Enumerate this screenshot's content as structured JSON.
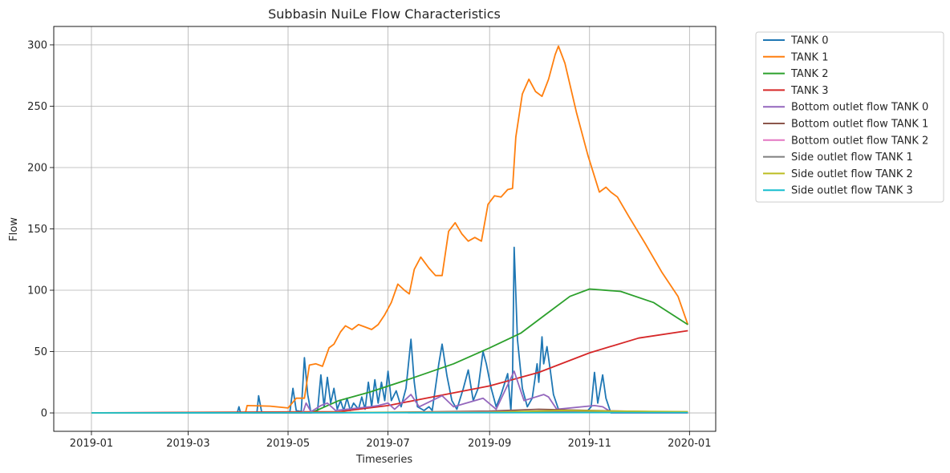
{
  "chart_data": {
    "type": "line",
    "title": "Subbasin NuiLe Flow Characteristics",
    "xlabel": "Timeseries",
    "ylabel": "Flow",
    "xlim": [
      "2018-12-09",
      "2020-01-17"
    ],
    "ylim": [
      -15,
      315
    ],
    "x_ticks": [
      "2019-01",
      "2019-03",
      "2019-05",
      "2019-07",
      "2019-09",
      "2019-11",
      "2020-01"
    ],
    "y_ticks": [
      0,
      50,
      100,
      150,
      200,
      250,
      300
    ],
    "grid": true,
    "legend_position": "outside-right",
    "series": [
      {
        "name": "TANK 0",
        "color": "#1f77b4",
        "points": [
          [
            "2019-01-01",
            0
          ],
          [
            "2019-03-31",
            0
          ],
          [
            "2019-04-01",
            5
          ],
          [
            "2019-04-02",
            0
          ],
          [
            "2019-04-12",
            0
          ],
          [
            "2019-04-13",
            14
          ],
          [
            "2019-04-15",
            0
          ],
          [
            "2019-05-02",
            0
          ],
          [
            "2019-05-04",
            20
          ],
          [
            "2019-05-06",
            2
          ],
          [
            "2019-05-09",
            1
          ],
          [
            "2019-05-11",
            45
          ],
          [
            "2019-05-13",
            15
          ],
          [
            "2019-05-15",
            0
          ],
          [
            "2019-05-19",
            2
          ],
          [
            "2019-05-21",
            31
          ],
          [
            "2019-05-23",
            5
          ],
          [
            "2019-05-25",
            29
          ],
          [
            "2019-05-27",
            8
          ],
          [
            "2019-05-29",
            20
          ],
          [
            "2019-05-31",
            3
          ],
          [
            "2019-06-02",
            10
          ],
          [
            "2019-06-04",
            2
          ],
          [
            "2019-06-06",
            12
          ],
          [
            "2019-06-08",
            2
          ],
          [
            "2019-06-10",
            8
          ],
          [
            "2019-06-13",
            3
          ],
          [
            "2019-06-15",
            13
          ],
          [
            "2019-06-17",
            3
          ],
          [
            "2019-06-19",
            25
          ],
          [
            "2019-06-21",
            5
          ],
          [
            "2019-06-23",
            27
          ],
          [
            "2019-06-25",
            8
          ],
          [
            "2019-06-27",
            25
          ],
          [
            "2019-06-29",
            10
          ],
          [
            "2019-07-01",
            34
          ],
          [
            "2019-07-03",
            10
          ],
          [
            "2019-07-06",
            18
          ],
          [
            "2019-07-09",
            5
          ],
          [
            "2019-07-12",
            20
          ],
          [
            "2019-07-15",
            60
          ],
          [
            "2019-07-17",
            25
          ],
          [
            "2019-07-19",
            5
          ],
          [
            "2019-07-23",
            2
          ],
          [
            "2019-07-26",
            5
          ],
          [
            "2019-07-28",
            2
          ],
          [
            "2019-08-01",
            40
          ],
          [
            "2019-08-03",
            56
          ],
          [
            "2019-08-06",
            30
          ],
          [
            "2019-08-09",
            10
          ],
          [
            "2019-08-12",
            3
          ],
          [
            "2019-08-16",
            20
          ],
          [
            "2019-08-19",
            35
          ],
          [
            "2019-08-22",
            10
          ],
          [
            "2019-08-25",
            20
          ],
          [
            "2019-08-28",
            50
          ],
          [
            "2019-08-30",
            40
          ],
          [
            "2019-09-02",
            20
          ],
          [
            "2019-09-05",
            5
          ],
          [
            "2019-09-08",
            15
          ],
          [
            "2019-09-12",
            32
          ],
          [
            "2019-09-14",
            2
          ],
          [
            "2019-09-15",
            30
          ],
          [
            "2019-09-16",
            135
          ],
          [
            "2019-09-18",
            60
          ],
          [
            "2019-09-21",
            20
          ],
          [
            "2019-09-24",
            5
          ],
          [
            "2019-09-27",
            12
          ],
          [
            "2019-09-30",
            40
          ],
          [
            "2019-10-01",
            25
          ],
          [
            "2019-10-03",
            62
          ],
          [
            "2019-10-04",
            40
          ],
          [
            "2019-10-06",
            54
          ],
          [
            "2019-10-08",
            35
          ],
          [
            "2019-10-10",
            15
          ],
          [
            "2019-10-13",
            3
          ],
          [
            "2019-10-18",
            1
          ],
          [
            "2019-10-25",
            1
          ],
          [
            "2019-10-31",
            2
          ],
          [
            "2019-11-02",
            5
          ],
          [
            "2019-11-04",
            33
          ],
          [
            "2019-11-06",
            8
          ],
          [
            "2019-11-09",
            31
          ],
          [
            "2019-11-11",
            12
          ],
          [
            "2019-11-14",
            0
          ],
          [
            "2019-12-31",
            0
          ]
        ]
      },
      {
        "name": "TANK 1",
        "color": "#ff7f0e",
        "points": [
          [
            "2019-01-01",
            0
          ],
          [
            "2019-04-05",
            0
          ],
          [
            "2019-04-06",
            6
          ],
          [
            "2019-04-20",
            5.5
          ],
          [
            "2019-05-01",
            4
          ],
          [
            "2019-05-06",
            12
          ],
          [
            "2019-05-11",
            12
          ],
          [
            "2019-05-14",
            39
          ],
          [
            "2019-05-18",
            40
          ],
          [
            "2019-05-22",
            38
          ],
          [
            "2019-05-26",
            53
          ],
          [
            "2019-05-29",
            56
          ],
          [
            "2019-06-02",
            66
          ],
          [
            "2019-06-05",
            71
          ],
          [
            "2019-06-09",
            68
          ],
          [
            "2019-06-13",
            72
          ],
          [
            "2019-06-17",
            70
          ],
          [
            "2019-06-21",
            68
          ],
          [
            "2019-06-25",
            72
          ],
          [
            "2019-06-29",
            80
          ],
          [
            "2019-07-03",
            90
          ],
          [
            "2019-07-07",
            105
          ],
          [
            "2019-07-11",
            100
          ],
          [
            "2019-07-14",
            97
          ],
          [
            "2019-07-17",
            117
          ],
          [
            "2019-07-21",
            127
          ],
          [
            "2019-07-26",
            118
          ],
          [
            "2019-07-30",
            112
          ],
          [
            "2019-08-03",
            112
          ],
          [
            "2019-08-07",
            148
          ],
          [
            "2019-08-11",
            155
          ],
          [
            "2019-08-15",
            146
          ],
          [
            "2019-08-19",
            140
          ],
          [
            "2019-08-23",
            143
          ],
          [
            "2019-08-27",
            140
          ],
          [
            "2019-08-31",
            170
          ],
          [
            "2019-09-04",
            177
          ],
          [
            "2019-09-08",
            176
          ],
          [
            "2019-09-12",
            182
          ],
          [
            "2019-09-15",
            183
          ],
          [
            "2019-09-17",
            225
          ],
          [
            "2019-09-21",
            260
          ],
          [
            "2019-09-25",
            272
          ],
          [
            "2019-09-29",
            262
          ],
          [
            "2019-10-03",
            258
          ],
          [
            "2019-10-07",
            272
          ],
          [
            "2019-10-11",
            292
          ],
          [
            "2019-10-13",
            299
          ],
          [
            "2019-10-17",
            285
          ],
          [
            "2019-10-24",
            245
          ],
          [
            "2019-10-31",
            210
          ],
          [
            "2019-11-07",
            180
          ],
          [
            "2019-11-11",
            184
          ],
          [
            "2019-11-14",
            180
          ],
          [
            "2019-11-18",
            176
          ],
          [
            "2019-11-25",
            160
          ],
          [
            "2019-12-05",
            138
          ],
          [
            "2019-12-15",
            115
          ],
          [
            "2019-12-25",
            95
          ],
          [
            "2019-12-31",
            72
          ]
        ]
      },
      {
        "name": "TANK 2",
        "color": "#2ca02c",
        "points": [
          [
            "2019-01-01",
            0
          ],
          [
            "2019-05-15",
            0
          ],
          [
            "2019-06-01",
            10
          ],
          [
            "2019-06-20",
            17
          ],
          [
            "2019-07-15",
            28
          ],
          [
            "2019-08-10",
            40
          ],
          [
            "2019-09-01",
            53
          ],
          [
            "2019-09-20",
            65
          ],
          [
            "2019-10-05",
            80
          ],
          [
            "2019-10-20",
            95
          ],
          [
            "2019-11-01",
            101
          ],
          [
            "2019-11-20",
            99
          ],
          [
            "2019-12-10",
            90
          ],
          [
            "2019-12-31",
            72
          ]
        ]
      },
      {
        "name": "TANK 3",
        "color": "#d62728",
        "points": [
          [
            "2019-01-01",
            0
          ],
          [
            "2019-06-01",
            1
          ],
          [
            "2019-07-01",
            6
          ],
          [
            "2019-08-01",
            14
          ],
          [
            "2019-09-01",
            22
          ],
          [
            "2019-10-01",
            33
          ],
          [
            "2019-11-01",
            49
          ],
          [
            "2019-12-01",
            61
          ],
          [
            "2019-12-31",
            67
          ]
        ]
      },
      {
        "name": "Bottom outlet flow TANK 0",
        "color": "#9467bd",
        "points": [
          [
            "2019-01-01",
            0
          ],
          [
            "2019-05-10",
            0
          ],
          [
            "2019-05-12",
            8
          ],
          [
            "2019-05-15",
            1
          ],
          [
            "2019-05-21",
            6
          ],
          [
            "2019-05-25",
            8
          ],
          [
            "2019-05-30",
            2
          ],
          [
            "2019-06-20",
            5
          ],
          [
            "2019-06-25",
            6
          ],
          [
            "2019-07-01",
            8
          ],
          [
            "2019-07-05",
            3
          ],
          [
            "2019-07-15",
            15
          ],
          [
            "2019-07-20",
            5
          ],
          [
            "2019-08-03",
            14
          ],
          [
            "2019-08-10",
            5
          ],
          [
            "2019-08-28",
            12
          ],
          [
            "2019-09-05",
            3
          ],
          [
            "2019-09-16",
            34
          ],
          [
            "2019-09-22",
            10
          ],
          [
            "2019-10-04",
            15
          ],
          [
            "2019-10-07",
            13
          ],
          [
            "2019-10-12",
            3
          ],
          [
            "2019-11-04",
            6
          ],
          [
            "2019-11-09",
            5
          ],
          [
            "2019-11-15",
            0
          ],
          [
            "2019-12-31",
            0
          ]
        ]
      },
      {
        "name": "Bottom outlet flow TANK 1",
        "color": "#8c564b",
        "points": [
          [
            "2019-01-01",
            0
          ],
          [
            "2019-05-01",
            0
          ],
          [
            "2019-07-01",
            0.5
          ],
          [
            "2019-09-01",
            1.5
          ],
          [
            "2019-10-01",
            3
          ],
          [
            "2019-11-01",
            2
          ],
          [
            "2019-12-31",
            0.5
          ]
        ]
      },
      {
        "name": "Bottom outlet flow TANK 2",
        "color": "#e377c2",
        "points": [
          [
            "2019-01-01",
            0
          ],
          [
            "2019-06-01",
            0.2
          ],
          [
            "2019-10-01",
            1
          ],
          [
            "2019-12-31",
            0.8
          ]
        ]
      },
      {
        "name": "Side outlet flow TANK 1",
        "color": "#7f7f7f",
        "points": [
          [
            "2019-01-01",
            0
          ],
          [
            "2019-09-01",
            0.5
          ],
          [
            "2019-10-15",
            1.5
          ],
          [
            "2019-12-31",
            0.5
          ]
        ]
      },
      {
        "name": "Side outlet flow TANK 2",
        "color": "#bcbd22",
        "points": [
          [
            "2019-01-01",
            0
          ],
          [
            "2019-09-01",
            0.5
          ],
          [
            "2019-10-15",
            2
          ],
          [
            "2019-11-15",
            1.5
          ],
          [
            "2019-12-31",
            1
          ]
        ]
      },
      {
        "name": "Side outlet flow TANK 3",
        "color": "#17becf",
        "points": [
          [
            "2019-01-01",
            0
          ],
          [
            "2019-12-31",
            0.3
          ]
        ]
      }
    ]
  }
}
